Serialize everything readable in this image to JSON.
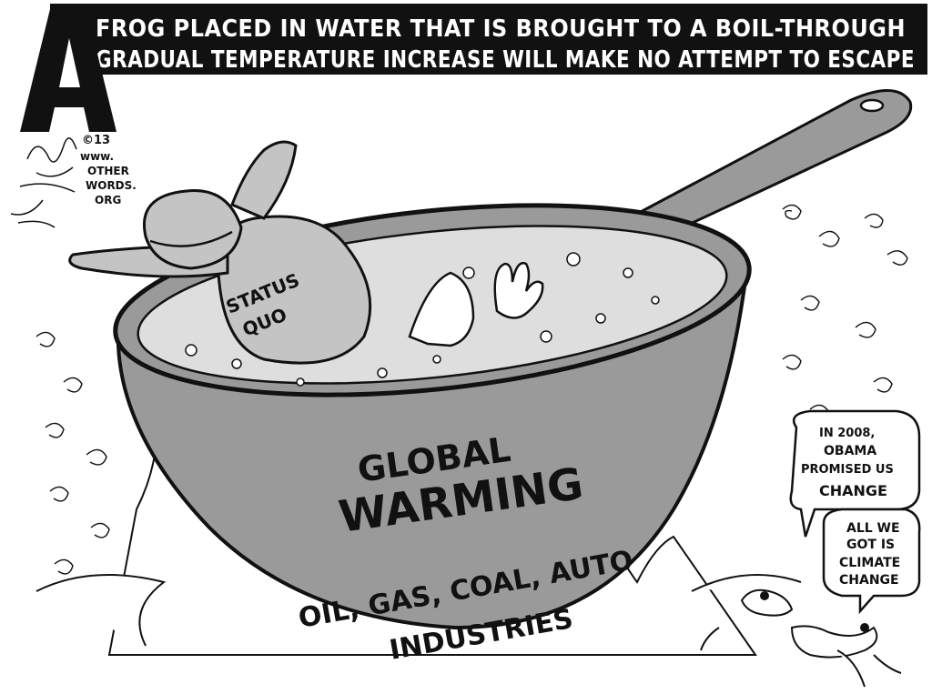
{
  "caption": {
    "line1": "FROG PLACED IN WATER THAT IS BROUGHT TO A BOIL-THROUGH",
    "line2": "GRADUAL TEMPERATURE INCREASE WILL MAKE NO ATTEMPT TO ESCAPE"
  },
  "logo_letter": "A",
  "signature": {
    "year": "©13",
    "site_lines": [
      "www.",
      "OTHER",
      "WORDS.",
      "ORG"
    ]
  },
  "frog_label": [
    "STATUS",
    "QUO"
  ],
  "pot_label": [
    "GLOBAL",
    "WARMING"
  ],
  "fire_label": [
    "OIL, GAS, COAL, AUTO",
    "INDUSTRIES"
  ],
  "bubble1": [
    "IN 2008,",
    "OBAMA",
    "PROMISED US",
    "CHANGE"
  ],
  "bubble2": [
    "ALL WE",
    "GOT IS",
    "CLIMATE",
    "CHANGE"
  ],
  "colors": {
    "caption_bg": "#111111",
    "pot_gray": "#9a9a9a",
    "water_gray": "#dedede",
    "frog_gray": "#c4c4c4",
    "ink": "#111111"
  }
}
